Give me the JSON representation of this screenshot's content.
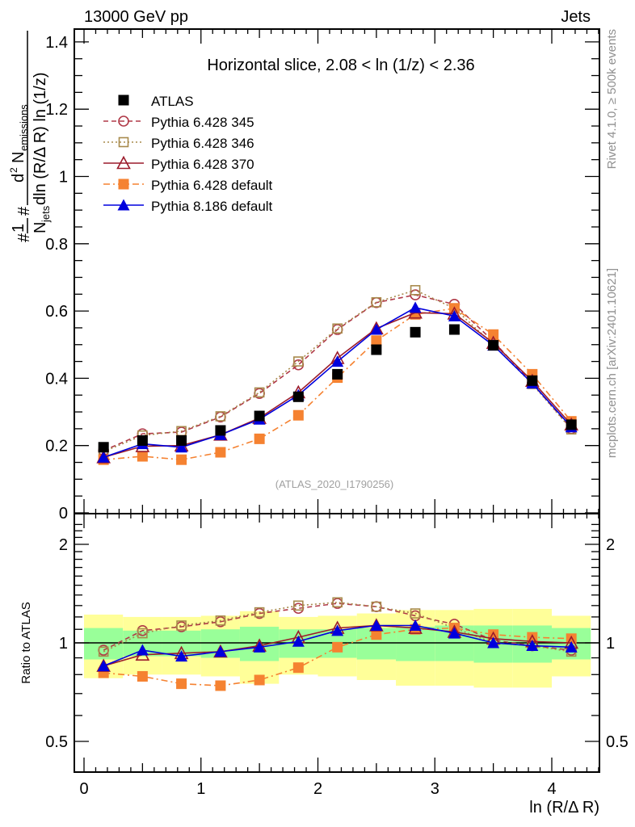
{
  "chart_data": {
    "type": "line",
    "header_left": "13000 GeV pp",
    "header_right": "Jets",
    "title": "Horizontal slice, 2.08 < ln (1/z) < 2.36",
    "watermark": "(ATLAS_2020_I1790256)",
    "side_label_top": "Rivet 4.1.0, ≥ 500k events",
    "side_label_bottom": "mcplots.cern.ch [arXiv:2401.10621]",
    "xlabel": "ln (R/Δ R)",
    "ylabel_main": "1/N_jets d²N_emissions / dln(R/ΔR) ln(1/z)",
    "ylabel_ratio": "Ratio to ATLAS",
    "xlim": [
      -0.08,
      4.41
    ],
    "ylim": [
      0,
      1.45
    ],
    "ratio_ylim": [
      0.4,
      2.3
    ],
    "ratio_scale": "log",
    "legend_position": "top-left",
    "x_ticks": [
      "0",
      "1",
      "2",
      "3",
      "4"
    ],
    "y_ticks": [
      "0",
      "0.2",
      "0.4",
      "0.6",
      "0.8",
      "1",
      "1.2",
      "1.4"
    ],
    "ratio_y_ticks": [
      "0.5",
      "1",
      "2"
    ],
    "x": [
      0.167,
      0.5,
      0.833,
      1.167,
      1.5,
      1.833,
      2.167,
      2.5,
      2.833,
      3.167,
      3.5,
      3.833,
      4.167
    ],
    "series": [
      {
        "name": "ATLAS",
        "color": "#000000",
        "marker": "square-filled",
        "line": "none",
        "values": [
          0.195,
          0.215,
          0.215,
          0.245,
          0.288,
          0.345,
          0.412,
          0.485,
          0.537,
          0.545,
          0.498,
          0.393,
          0.262
        ]
      },
      {
        "name": "Pythia 6.428 345",
        "color": "#b03a48",
        "marker": "circle-open",
        "line": "dashed",
        "values": [
          0.185,
          0.235,
          0.24,
          0.285,
          0.355,
          0.44,
          0.545,
          0.625,
          0.648,
          0.62,
          0.51,
          0.385,
          0.25
        ],
        "ratio": [
          0.95,
          1.09,
          1.12,
          1.16,
          1.23,
          1.275,
          1.32,
          1.29,
          1.21,
          1.14,
          1.02,
          0.98,
          0.95
        ]
      },
      {
        "name": "Pythia 6.428 346",
        "color": "#a88a4c",
        "marker": "square-open",
        "line": "dotted",
        "values": [
          0.182,
          0.23,
          0.243,
          0.287,
          0.358,
          0.45,
          0.548,
          0.626,
          0.662,
          0.608,
          0.5,
          0.383,
          0.248
        ],
        "ratio": [
          0.94,
          1.07,
          1.13,
          1.17,
          1.24,
          1.3,
          1.33,
          1.29,
          1.23,
          1.11,
          1.0,
          0.98,
          0.94
        ]
      },
      {
        "name": "Pythia 6.428 370",
        "color": "#9b1b2b",
        "marker": "triangle-open",
        "line": "solid",
        "values": [
          0.165,
          0.198,
          0.2,
          0.232,
          0.282,
          0.358,
          0.46,
          0.548,
          0.595,
          0.592,
          0.505,
          0.392,
          0.262
        ],
        "ratio": [
          0.85,
          0.92,
          0.93,
          0.94,
          0.98,
          1.04,
          1.11,
          1.13,
          1.11,
          1.08,
          1.03,
          1.01,
          1.0
        ]
      },
      {
        "name": "Pythia 6.428 default",
        "color": "#f58231",
        "marker": "square-filled",
        "line": "dashdot",
        "values": [
          0.158,
          0.168,
          0.158,
          0.18,
          0.22,
          0.29,
          0.402,
          0.512,
          0.59,
          0.608,
          0.53,
          0.412,
          0.272
        ],
        "ratio": [
          0.81,
          0.79,
          0.75,
          0.74,
          0.77,
          0.84,
          0.97,
          1.06,
          1.1,
          1.11,
          1.06,
          1.04,
          1.03
        ]
      },
      {
        "name": "Pythia 8.186 default",
        "color": "#0000dd",
        "marker": "triangle-filled",
        "line": "solid",
        "values": [
          0.165,
          0.205,
          0.195,
          0.232,
          0.278,
          0.35,
          0.45,
          0.545,
          0.61,
          0.585,
          0.498,
          0.385,
          0.255
        ],
        "ratio": [
          0.85,
          0.95,
          0.91,
          0.94,
          0.97,
          1.01,
          1.09,
          1.13,
          1.13,
          1.07,
          1.0,
          0.98,
          0.97
        ]
      }
    ],
    "uncertainty_bands": {
      "x_edges": [
        0,
        0.333,
        0.667,
        1.0,
        1.333,
        1.667,
        2.0,
        2.333,
        2.667,
        3.0,
        3.333,
        3.667,
        4.0,
        4.333
      ],
      "inner_color": "#99ff99",
      "outer_color": "#ffff99",
      "inner_low": [
        0.89,
        0.91,
        0.91,
        0.9,
        0.88,
        0.9,
        0.9,
        0.89,
        0.88,
        0.88,
        0.87,
        0.87,
        0.89
      ],
      "inner_high": [
        1.11,
        1.09,
        1.09,
        1.1,
        1.12,
        1.1,
        1.1,
        1.11,
        1.12,
        1.13,
        1.13,
        1.13,
        1.11
      ],
      "outer_low": [
        0.78,
        0.8,
        0.8,
        0.79,
        0.75,
        0.8,
        0.79,
        0.77,
        0.74,
        0.74,
        0.73,
        0.73,
        0.79
      ],
      "outer_high": [
        1.22,
        1.2,
        1.2,
        1.21,
        1.25,
        1.2,
        1.21,
        1.23,
        1.26,
        1.26,
        1.27,
        1.27,
        1.21
      ]
    }
  }
}
